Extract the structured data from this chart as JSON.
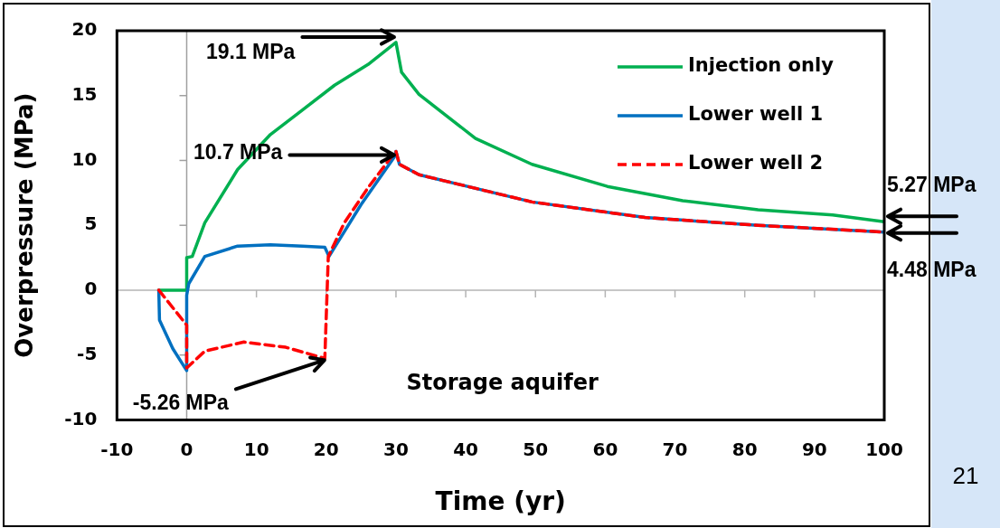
{
  "chart_data": {
    "type": "line",
    "xlabel": "Time (yr)",
    "ylabel": "Overpressure (MPa)",
    "xlim": [
      -10,
      100
    ],
    "xticks": [
      -10,
      0,
      10,
      20,
      30,
      40,
      50,
      60,
      70,
      80,
      90,
      100
    ],
    "ylim": [
      -10,
      20
    ],
    "yticks": [
      -10,
      -5,
      0,
      5,
      10,
      15,
      20
    ],
    "grid": false,
    "legend": "top right",
    "marker": "none",
    "ref_lines": [
      {
        "axis": "x",
        "value": 0,
        "color": "#a0a0a0"
      },
      {
        "axis": "y",
        "value": 0,
        "color": "#b4b4b4"
      }
    ],
    "series": [
      {
        "name": "Injection only",
        "color": "#00b050",
        "line_style": "solid",
        "x": [
          -4,
          0,
          0,
          0.8,
          2.6,
          7.3,
          12,
          16.6,
          21.2,
          26,
          30,
          30.8,
          33.3,
          41.4,
          49.5,
          60.3,
          71.1,
          81.9,
          92.6,
          100
        ],
        "values": [
          0,
          0,
          2.5,
          2.6,
          5.2,
          9.3,
          12,
          13.9,
          15.8,
          17.4,
          19.1,
          16.8,
          15.1,
          11.7,
          9.7,
          8.0,
          6.9,
          6.2,
          5.8,
          5.27
        ]
      },
      {
        "name": "Lower well 1",
        "color": "#0070c0",
        "line_style": "solid",
        "x": [
          -4,
          -3.9,
          -2,
          0,
          0,
          0.3,
          2.6,
          7.3,
          12,
          16.6,
          19.8,
          20.4,
          25,
          29.8,
          30,
          30.5,
          33.3,
          49.5,
          65.7,
          81.9,
          100
        ],
        "values": [
          0,
          -2.3,
          -4.5,
          -6.2,
          -0.4,
          0.5,
          2.6,
          3.4,
          3.5,
          3.4,
          3.3,
          2.6,
          6.6,
          10.3,
          10.7,
          9.7,
          8.9,
          6.8,
          5.6,
          5.0,
          4.48
        ]
      },
      {
        "name": "Lower well 2",
        "color": "#ff0000",
        "line_style": "dashed",
        "x": [
          -4,
          0,
          0,
          2.6,
          8.2,
          14.2,
          19.8,
          20.3,
          22.6,
          26,
          29.8,
          30,
          30.5,
          33.3,
          49.5,
          65.7,
          81.9,
          100
        ],
        "values": [
          0,
          -2.7,
          -6.0,
          -4.7,
          -4.0,
          -4.4,
          -5.26,
          2.6,
          5.2,
          7.9,
          10.6,
          10.7,
          9.7,
          8.9,
          6.8,
          5.6,
          5.0,
          4.48
        ]
      }
    ],
    "annotations": [
      {
        "text": "19.1 MPa",
        "x": 30,
        "y": 19.1
      },
      {
        "text": "10.7 MPa",
        "x": 30,
        "y": 10.7
      },
      {
        "text": "-5.26 MPa",
        "x": 20,
        "y": -5.26
      },
      {
        "text": "5.27 MPa",
        "x": 100,
        "y": 5.27
      },
      {
        "text": "4.48 MPa",
        "x": 100,
        "y": 4.48
      },
      "Storage aquifer",
      "21"
    ]
  }
}
